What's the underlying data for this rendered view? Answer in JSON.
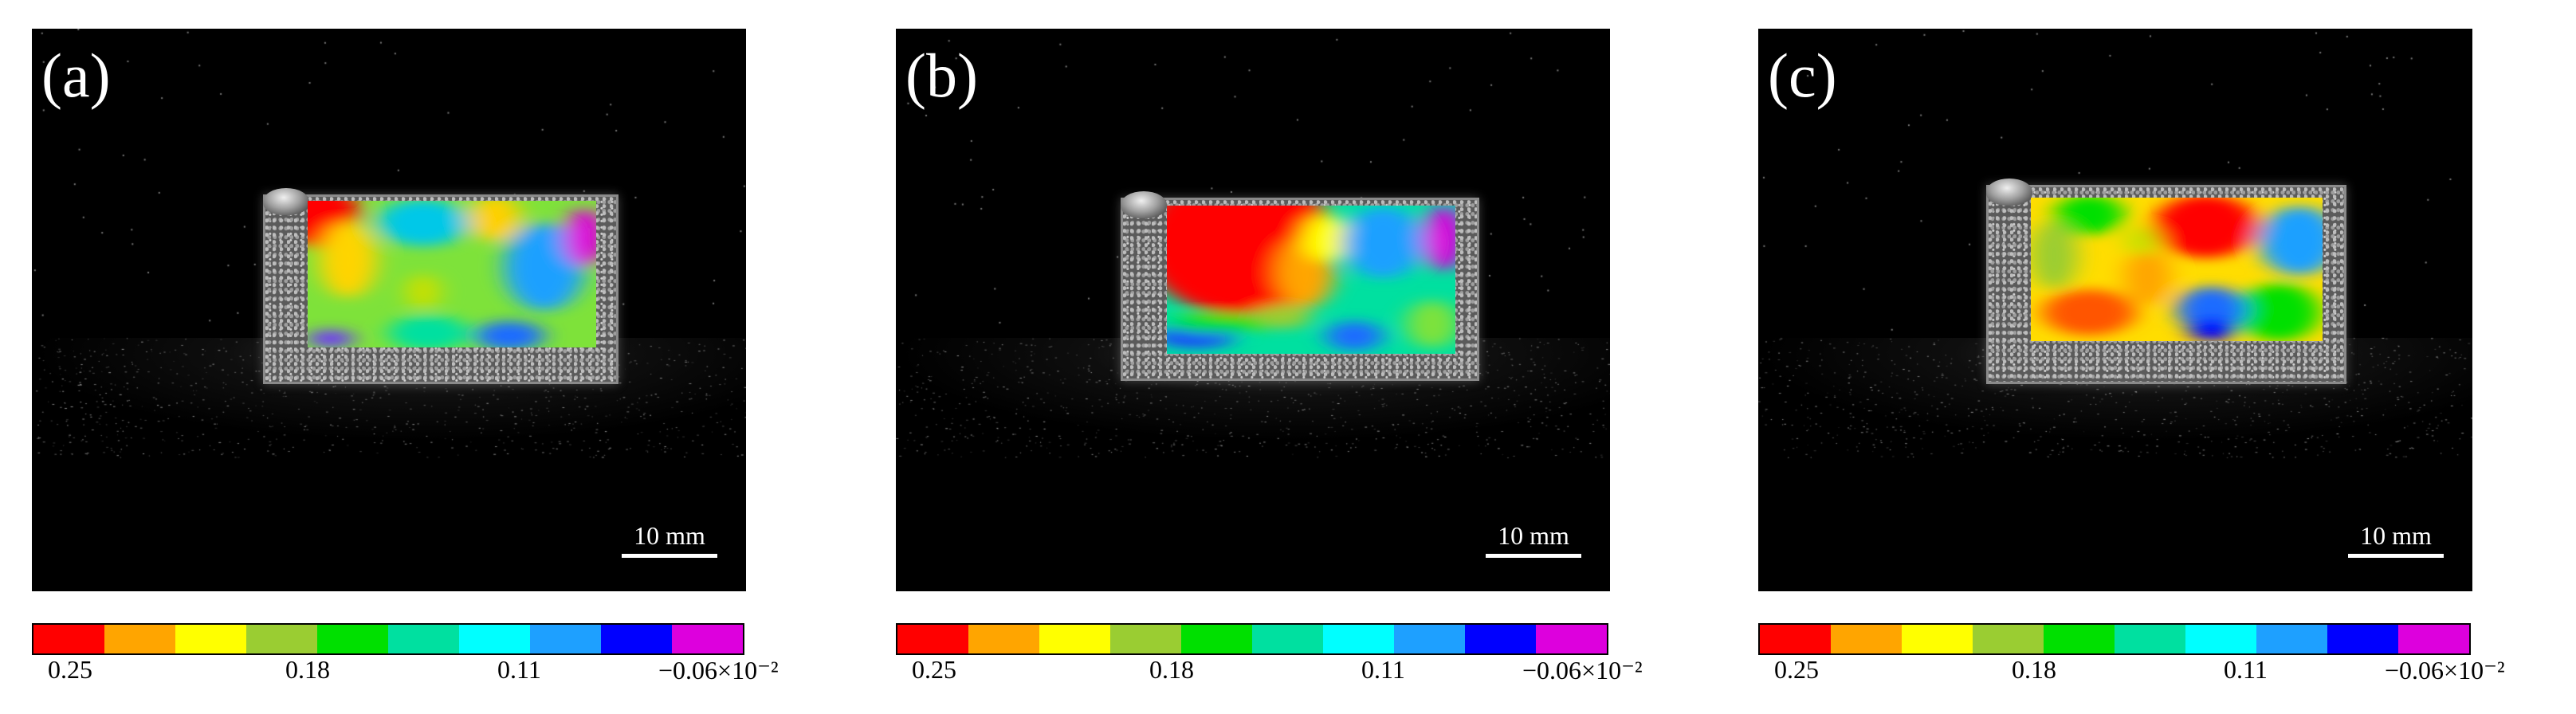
{
  "panels": [
    {
      "label": "(a)",
      "scale_label": "10 mm"
    },
    {
      "label": "(b)",
      "scale_label": "10 mm"
    },
    {
      "label": "(c)",
      "scale_label": "10 mm"
    }
  ],
  "colorbar": {
    "colors": [
      "#ff0000",
      "#ffa500",
      "#ffff00",
      "#9acd32",
      "#00e000",
      "#00e0a0",
      "#00ffff",
      "#1ea0ff",
      "#0000ff",
      "#dd00dd"
    ],
    "tick_labels": [
      "0.25",
      "0.18",
      "0.11",
      "−0.06"
    ],
    "multiplier": "×10⁻²"
  }
}
